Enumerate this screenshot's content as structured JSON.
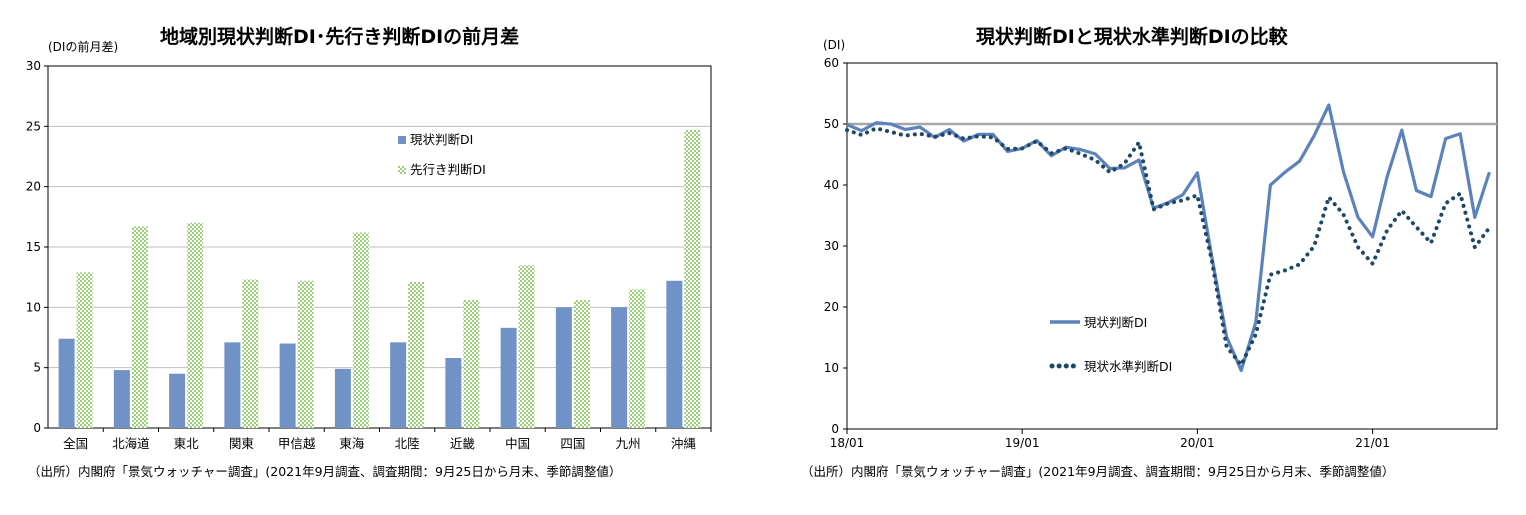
{
  "left": {
    "title": "地域別現状判断DI･先行き判断DIの前月差",
    "unit": "(DIの前月差)",
    "source": "（出所）内閣府「景気ウォッチャー調査」(2021年9月調査、調査期間：9月25日から月末、季節調整値）"
  },
  "right": {
    "title": "現状判断DIと現状水準判断DIの比較",
    "unit": "(DI)",
    "source": "（出所）内閣府「景気ウォッチャー調査」(2021年9月調査、調査期間：9月25日から月末、季節調整値）"
  },
  "colors": {
    "current": "#7092c6",
    "future": "#9bcf7a",
    "level": "#1f4866",
    "line": "#5b82ba",
    "ref": "#a6a6a6"
  },
  "chart_data": [
    {
      "type": "bar",
      "title": "地域別現状判断DI･先行き判断DIの前月差",
      "ylabel": "(DIの前月差)",
      "ylim": [
        0,
        30
      ],
      "yticks": [
        0,
        5,
        10,
        15,
        20,
        25,
        30
      ],
      "grid": true,
      "legend": "top-right",
      "categories": [
        "全国",
        "北海道",
        "東北",
        "関東",
        "甲信越",
        "東海",
        "北陸",
        "近畿",
        "中国",
        "四国",
        "九州",
        "沖縄"
      ],
      "series": [
        {
          "name": "現状判断DI",
          "values": [
            7.4,
            4.8,
            4.5,
            7.1,
            7.0,
            4.9,
            7.1,
            5.8,
            8.3,
            10.0,
            10.0,
            12.2
          ]
        },
        {
          "name": "先行き判断DI",
          "values": [
            12.9,
            16.7,
            17.0,
            12.3,
            12.2,
            16.2,
            12.1,
            10.6,
            13.5,
            10.6,
            11.5,
            24.7
          ]
        }
      ]
    },
    {
      "type": "line",
      "title": "現状判断DIと現状水準判断DIの比較",
      "ylabel": "(DI)",
      "ylim": [
        0,
        60
      ],
      "yticks": [
        0,
        10,
        20,
        30,
        40,
        50,
        60
      ],
      "xticks": [
        "18/01",
        "19/01",
        "20/01",
        "21/01"
      ],
      "legend": "center-left",
      "reference_line": 50,
      "x": [
        "18/01",
        "18/02",
        "18/03",
        "18/04",
        "18/05",
        "18/06",
        "18/07",
        "18/08",
        "18/09",
        "18/10",
        "18/11",
        "18/12",
        "19/01",
        "19/02",
        "19/03",
        "19/04",
        "19/05",
        "19/06",
        "19/07",
        "19/08",
        "19/09",
        "19/10",
        "19/11",
        "19/12",
        "20/01",
        "20/02",
        "20/03",
        "20/04",
        "20/05",
        "20/06",
        "20/07",
        "20/08",
        "20/09",
        "20/10",
        "20/11",
        "20/12",
        "21/01",
        "21/02",
        "21/03",
        "21/04",
        "21/05",
        "21/06",
        "21/07",
        "21/08",
        "21/09"
      ],
      "series": [
        {
          "name": "現状判断DI",
          "style": "solid",
          "values": [
            49.9,
            48.9,
            50.2,
            50.0,
            49.1,
            49.5,
            47.8,
            49.1,
            47.2,
            48.3,
            48.3,
            45.5,
            46.0,
            47.3,
            44.8,
            46.2,
            45.8,
            45.1,
            42.7,
            42.8,
            44.1,
            36.2,
            37.1,
            38.4,
            42.0,
            28.0,
            15.1,
            9.6,
            17.5,
            40.0,
            42.1,
            43.9,
            48.1,
            53.1,
            42.2,
            34.7,
            31.5,
            41.4,
            49.0,
            39.1,
            38.1,
            47.6,
            48.4,
            34.7,
            42.1
          ]
        },
        {
          "name": "現状水準判断DI",
          "style": "dotted",
          "values": [
            49.0,
            48.2,
            49.3,
            48.7,
            48.1,
            48.4,
            47.9,
            48.5,
            47.6,
            48.0,
            47.8,
            45.9,
            46.0,
            47.2,
            45.2,
            46.0,
            45.1,
            44.1,
            42.1,
            43.5,
            47.0,
            36.0,
            37.0,
            37.5,
            38.3,
            27.5,
            13.5,
            10.5,
            15.5,
            25.3,
            26.0,
            27.0,
            30.0,
            38.0,
            35.2,
            29.8,
            27.1,
            32.6,
            35.8,
            33.1,
            30.5,
            37.0,
            38.6,
            29.8,
            33.0
          ]
        }
      ]
    }
  ]
}
